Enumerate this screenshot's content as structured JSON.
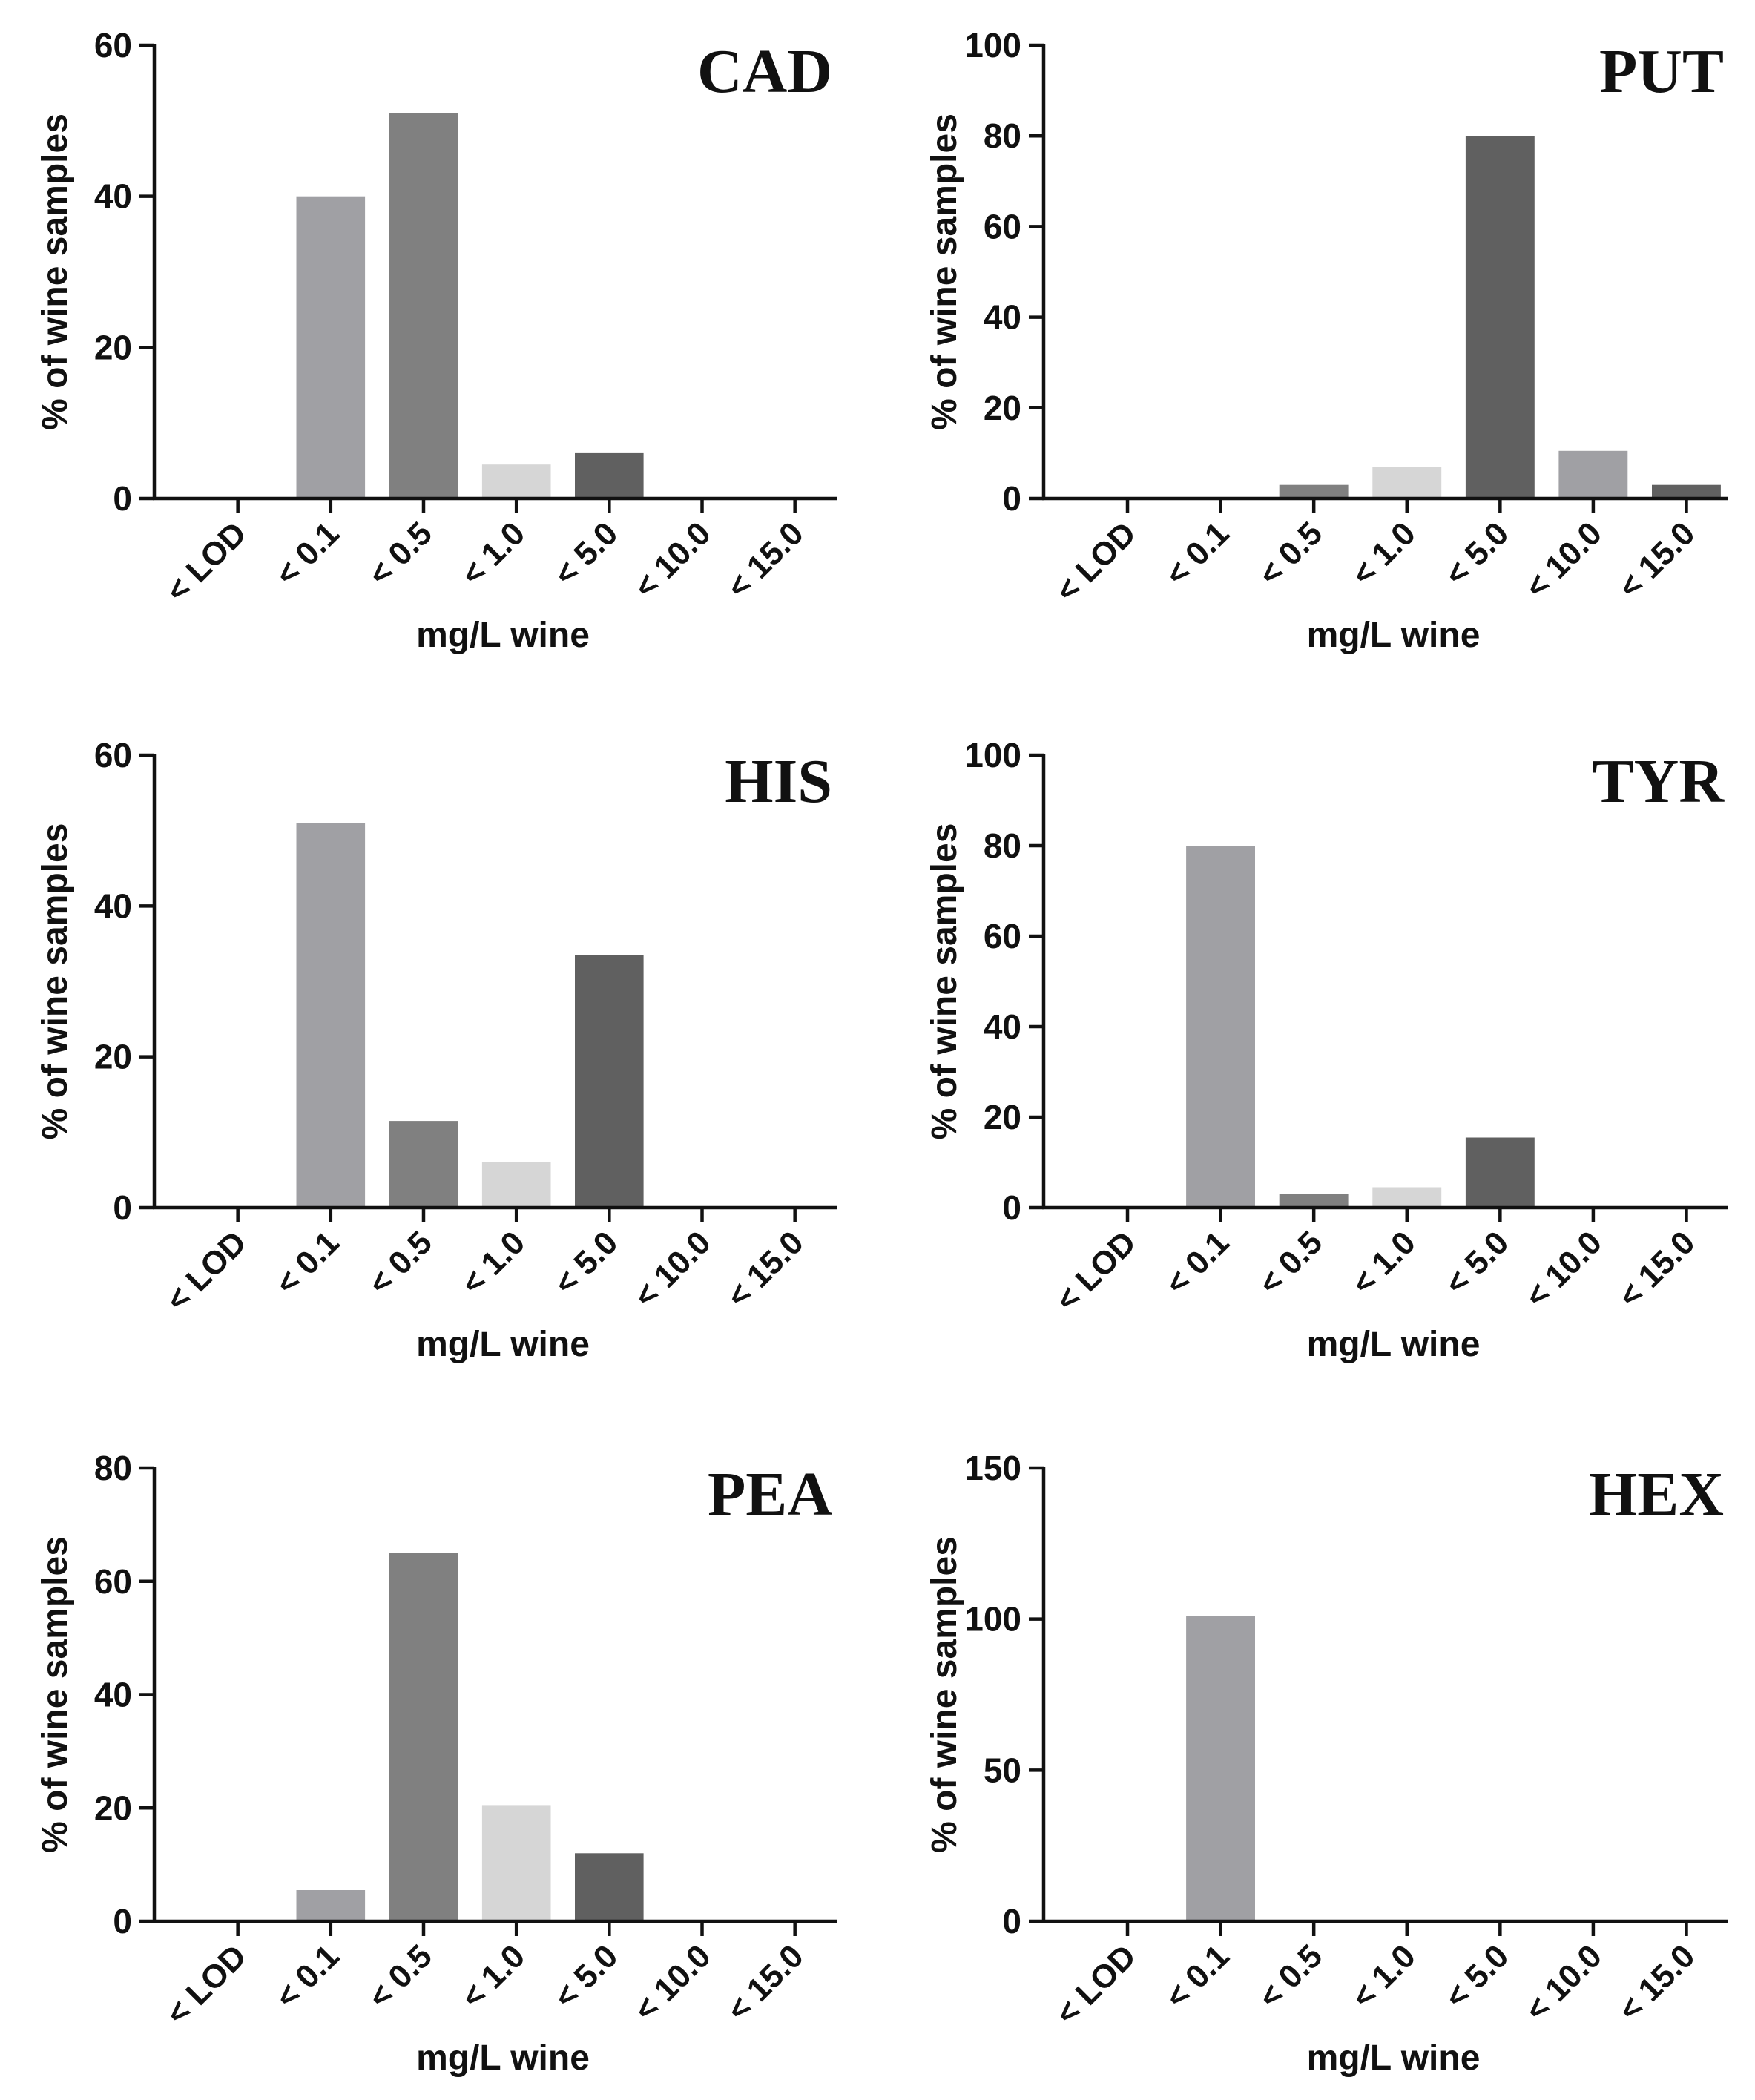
{
  "chart_data": [
    {
      "type": "bar",
      "title": "CAD",
      "xlabel": "mg/L wine",
      "ylabel": "% of wine samples",
      "categories": [
        "< LOD",
        "< 0.1",
        "< 0.5",
        "< 1.0",
        "< 5.0",
        "< 10.0",
        "< 15.0"
      ],
      "values": [
        0,
        40,
        51,
        4.5,
        6,
        0,
        0
      ],
      "ylim": [
        0,
        60
      ],
      "yticks": [
        0,
        20,
        40,
        60
      ],
      "colors": [
        "#a0a0a4",
        "#a0a0a4",
        "#808080",
        "#d6d6d6",
        "#606060",
        "#a0a0a4",
        "#606060"
      ]
    },
    {
      "type": "bar",
      "title": "PUT",
      "xlabel": "mg/L wine",
      "ylabel": "% of wine samples",
      "categories": [
        "< LOD",
        "< 0.1",
        "< 0.5",
        "< 1.0",
        "< 5.0",
        "< 10.0",
        "< 15.0"
      ],
      "values": [
        0,
        0,
        3,
        7,
        80,
        10.5,
        3
      ],
      "ylim": [
        0,
        100
      ],
      "yticks": [
        0,
        20,
        40,
        60,
        80,
        100
      ],
      "colors": [
        "#a0a0a4",
        "#a0a0a4",
        "#808080",
        "#d6d6d6",
        "#606060",
        "#a0a0a4",
        "#606060"
      ]
    },
    {
      "type": "bar",
      "title": "HIS",
      "xlabel": "mg/L wine",
      "ylabel": "% of wine samples",
      "categories": [
        "< LOD",
        "< 0.1",
        "< 0.5",
        "< 1.0",
        "< 5.0",
        "< 10.0",
        "< 15.0"
      ],
      "values": [
        0,
        51,
        11.5,
        6,
        33.5,
        0,
        0
      ],
      "ylim": [
        0,
        60
      ],
      "yticks": [
        0,
        20,
        40,
        60
      ],
      "colors": [
        "#a0a0a4",
        "#a0a0a4",
        "#808080",
        "#d6d6d6",
        "#606060",
        "#a0a0a4",
        "#606060"
      ]
    },
    {
      "type": "bar",
      "title": "TYR",
      "xlabel": "mg/L wine",
      "ylabel": "% of wine samples",
      "categories": [
        "< LOD",
        "< 0.1",
        "< 0.5",
        "< 1.0",
        "< 5.0",
        "< 10.0",
        "< 15.0"
      ],
      "values": [
        0,
        80,
        3,
        4.5,
        15.5,
        0,
        0
      ],
      "ylim": [
        0,
        100
      ],
      "yticks": [
        0,
        20,
        40,
        60,
        80,
        100
      ],
      "colors": [
        "#a0a0a4",
        "#a0a0a4",
        "#808080",
        "#d6d6d6",
        "#606060",
        "#a0a0a4",
        "#606060"
      ]
    },
    {
      "type": "bar",
      "title": "PEA",
      "xlabel": "mg/L wine",
      "ylabel": "% of wine samples",
      "categories": [
        "< LOD",
        "< 0.1",
        "< 0.5",
        "< 1.0",
        "< 5.0",
        "< 10.0",
        "< 15.0"
      ],
      "values": [
        0,
        5.5,
        65,
        20.5,
        12,
        0,
        0
      ],
      "ylim": [
        0,
        80
      ],
      "yticks": [
        0,
        20,
        40,
        60,
        80
      ],
      "colors": [
        "#a0a0a4",
        "#a0a0a4",
        "#808080",
        "#d6d6d6",
        "#606060",
        "#a0a0a4",
        "#606060"
      ]
    },
    {
      "type": "bar",
      "title": "HEX",
      "xlabel": "mg/L wine",
      "ylabel": "% of wine samples",
      "categories": [
        "< LOD",
        "< 0.1",
        "< 0.5",
        "< 1.0",
        "< 5.0",
        "< 10.0",
        "< 15.0"
      ],
      "values": [
        0,
        101,
        0,
        0,
        0,
        0,
        0
      ],
      "ylim": [
        0,
        150
      ],
      "yticks": [
        0,
        50,
        100,
        150
      ],
      "colors": [
        "#a0a0a4",
        "#a0a0a4",
        "#808080",
        "#d6d6d6",
        "#606060",
        "#a0a0a4",
        "#606060"
      ]
    }
  ]
}
